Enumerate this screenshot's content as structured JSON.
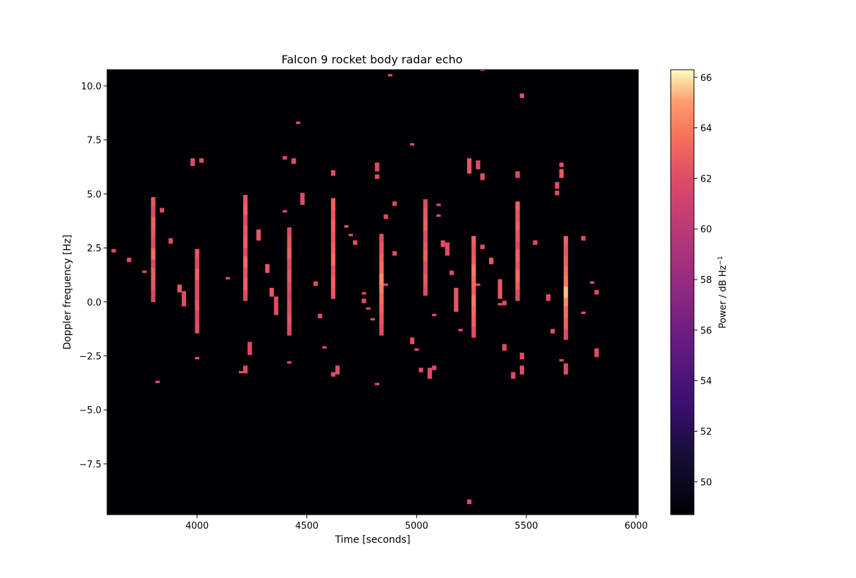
{
  "chart_data": {
    "type": "heatmap",
    "title": "Falcon 9 rocket body radar echo",
    "xlabel": "Time [seconds]",
    "ylabel": "Doppler frequency [Hz]",
    "xlim": [
      3590,
      6010
    ],
    "ylim": [
      -9.85,
      10.75
    ],
    "x_ticks": [
      4000,
      4500,
      5000,
      5500,
      6000
    ],
    "y_ticks": [
      -7.5,
      -5.0,
      -2.5,
      0.0,
      2.5,
      5.0,
      7.5,
      10.0
    ],
    "x_tick_labels": [
      "4000",
      "4500",
      "5000",
      "5500",
      "6000"
    ],
    "y_tick_labels": [
      "−7.5",
      "−5.0",
      "−2.5",
      "0.0",
      "2.5",
      "5.0",
      "7.5",
      "10.0"
    ],
    "background_color": "#000004",
    "colormap": "magma",
    "colorbar": {
      "label_main": "Power / dB Hz",
      "label_sup": "−1",
      "range": [
        48.7,
        66.3
      ],
      "ticks": [
        50,
        52,
        54,
        56,
        58,
        60,
        62,
        64,
        66
      ],
      "tick_labels": [
        "50",
        "52",
        "54",
        "56",
        "58",
        "60",
        "62",
        "64",
        "66"
      ]
    },
    "cell_width_s": 20,
    "cell_height_hz": 0.13,
    "series": [
      {
        "x": 3620,
        "y0": 2.3,
        "y1": 2.45,
        "values": [
          62
        ]
      },
      {
        "x": 3690,
        "y0": 1.85,
        "y1": 2.05,
        "values": [
          62
        ]
      },
      {
        "x": 3760,
        "y0": 1.35,
        "y1": 1.45,
        "values": [
          62
        ]
      },
      {
        "x": 3800,
        "y0": 0.0,
        "y1": 4.85,
        "values": [
          61.5,
          62.5,
          63,
          62,
          63.5,
          62,
          62.5,
          63,
          62,
          62.5
        ]
      },
      {
        "x": 3820,
        "y0": -3.75,
        "y1": -3.65,
        "values": [
          62
        ]
      },
      {
        "x": 3840,
        "y0": 4.15,
        "y1": 4.35,
        "values": [
          62
        ]
      },
      {
        "x": 3880,
        "y0": 2.7,
        "y1": 2.95,
        "values": [
          62
        ]
      },
      {
        "x": 3920,
        "y0": 0.45,
        "y1": 0.8,
        "values": [
          62.5
        ]
      },
      {
        "x": 3940,
        "y0": -0.2,
        "y1": 0.5,
        "values": [
          62
        ]
      },
      {
        "x": 3980,
        "y0": 6.3,
        "y1": 6.65,
        "values": [
          62
        ]
      },
      {
        "x": 4000,
        "y0": -1.45,
        "y1": 2.45,
        "values": [
          62,
          61.5,
          62.5,
          62,
          62,
          63,
          62,
          62.5
        ]
      },
      {
        "x": 4000,
        "y0": -2.65,
        "y1": -2.55,
        "values": [
          62
        ]
      },
      {
        "x": 4020,
        "y0": 6.45,
        "y1": 6.65,
        "values": [
          62
        ]
      },
      {
        "x": 4140,
        "y0": 1.05,
        "y1": 1.15,
        "values": [
          62
        ]
      },
      {
        "x": 4200,
        "y0": -3.3,
        "y1": -3.2,
        "values": [
          62
        ]
      },
      {
        "x": 4220,
        "y0": 0.05,
        "y1": 4.95,
        "values": [
          62,
          63,
          62.5,
          63.5,
          62,
          63,
          62.5,
          62,
          63,
          62.5
        ]
      },
      {
        "x": 4220,
        "y0": -3.3,
        "y1": -2.95,
        "values": [
          62
        ]
      },
      {
        "x": 4240,
        "y0": -2.45,
        "y1": -1.85,
        "values": [
          62
        ]
      },
      {
        "x": 4280,
        "y0": 2.85,
        "y1": 3.35,
        "values": [
          62.5
        ]
      },
      {
        "x": 4320,
        "y0": 1.35,
        "y1": 1.75,
        "values": [
          62.5
        ]
      },
      {
        "x": 4340,
        "y0": 0.25,
        "y1": 0.65,
        "values": [
          62.5
        ]
      },
      {
        "x": 4360,
        "y0": -0.6,
        "y1": 0.25,
        "values": [
          62
        ]
      },
      {
        "x": 4400,
        "y0": 4.15,
        "y1": 4.25,
        "values": [
          62
        ]
      },
      {
        "x": 4400,
        "y0": 6.6,
        "y1": 6.75,
        "values": [
          62
        ]
      },
      {
        "x": 4420,
        "y0": -1.55,
        "y1": 3.45,
        "values": [
          62,
          62.5,
          62,
          61.5,
          62,
          62.5,
          62,
          63,
          62.5,
          62
        ]
      },
      {
        "x": 4420,
        "y0": -2.85,
        "y1": -2.75,
        "values": [
          62
        ]
      },
      {
        "x": 4440,
        "y0": 6.4,
        "y1": 6.65,
        "values": [
          62
        ]
      },
      {
        "x": 4460,
        "y0": 8.25,
        "y1": 8.35,
        "values": [
          62
        ]
      },
      {
        "x": 4480,
        "y0": 4.5,
        "y1": 5.05,
        "values": [
          62
        ]
      },
      {
        "x": 4540,
        "y0": 0.75,
        "y1": 0.95,
        "values": [
          62
        ]
      },
      {
        "x": 4560,
        "y0": -0.75,
        "y1": -0.55,
        "values": [
          62
        ]
      },
      {
        "x": 4580,
        "y0": -2.15,
        "y1": -2.05,
        "values": [
          62
        ]
      },
      {
        "x": 4620,
        "y0": 0.15,
        "y1": 4.8,
        "values": [
          62.5,
          63,
          62.5,
          63.5,
          63,
          62.5,
          63,
          62.5,
          63
        ]
      },
      {
        "x": 4620,
        "y0": 5.85,
        "y1": 6.1,
        "values": [
          62
        ]
      },
      {
        "x": 4620,
        "y0": -3.45,
        "y1": -3.25,
        "values": [
          62
        ]
      },
      {
        "x": 4640,
        "y0": -3.35,
        "y1": -2.95,
        "values": [
          62
        ]
      },
      {
        "x": 4680,
        "y0": 3.45,
        "y1": 3.55,
        "values": [
          62
        ]
      },
      {
        "x": 4700,
        "y0": 3.05,
        "y1": 3.15,
        "values": [
          62
        ]
      },
      {
        "x": 4720,
        "y0": 2.65,
        "y1": 2.85,
        "values": [
          62
        ]
      },
      {
        "x": 4760,
        "y0": 0.35,
        "y1": 0.45,
        "values": [
          62
        ]
      },
      {
        "x": 4760,
        "y0": -0.05,
        "y1": 0.15,
        "values": [
          62
        ]
      },
      {
        "x": 4780,
        "y0": -0.35,
        "y1": -0.25,
        "values": [
          62
        ]
      },
      {
        "x": 4800,
        "y0": -0.85,
        "y1": -0.75,
        "values": [
          62
        ]
      },
      {
        "x": 4820,
        "y0": 5.7,
        "y1": 5.9,
        "values": [
          62
        ]
      },
      {
        "x": 4820,
        "y0": 6.05,
        "y1": 6.45,
        "values": [
          62
        ]
      },
      {
        "x": 4820,
        "y0": -3.85,
        "y1": -3.75,
        "values": [
          62
        ]
      },
      {
        "x": 4840,
        "y0": -1.55,
        "y1": 3.15,
        "values": [
          62,
          62.5,
          63,
          63.5,
          64,
          64.5,
          63.5,
          63,
          62.5,
          62
        ]
      },
      {
        "x": 4860,
        "y0": 0.75,
        "y1": 0.85,
        "values": [
          62
        ]
      },
      {
        "x": 4860,
        "y0": 3.85,
        "y1": 4.05,
        "values": [
          62
        ]
      },
      {
        "x": 4880,
        "y0": 10.45,
        "y1": 10.55,
        "values": [
          62
        ]
      },
      {
        "x": 4900,
        "y0": 4.45,
        "y1": 4.65,
        "values": [
          62
        ]
      },
      {
        "x": 4900,
        "y0": 2.15,
        "y1": 2.35,
        "values": [
          62
        ]
      },
      {
        "x": 4980,
        "y0": 7.25,
        "y1": 7.35,
        "values": [
          62
        ]
      },
      {
        "x": 4980,
        "y0": -1.95,
        "y1": -1.65,
        "values": [
          62
        ]
      },
      {
        "x": 5000,
        "y0": -2.25,
        "y1": -2.15,
        "values": [
          62
        ]
      },
      {
        "x": 5020,
        "y0": -3.25,
        "y1": -3.05,
        "values": [
          62
        ]
      },
      {
        "x": 5040,
        "y0": 0.3,
        "y1": 4.75,
        "values": [
          62,
          62.5,
          62,
          63,
          62.5,
          62,
          63,
          62.5,
          62
        ]
      },
      {
        "x": 5060,
        "y0": -3.55,
        "y1": -3.05,
        "values": [
          62
        ]
      },
      {
        "x": 5080,
        "y0": -3.15,
        "y1": -2.95,
        "values": [
          62
        ]
      },
      {
        "x": 5080,
        "y0": -0.65,
        "y1": -0.55,
        "values": [
          62
        ]
      },
      {
        "x": 5100,
        "y0": 4.45,
        "y1": 4.55,
        "values": [
          62
        ]
      },
      {
        "x": 5100,
        "y0": 3.95,
        "y1": 4.05,
        "values": [
          62
        ]
      },
      {
        "x": 5120,
        "y0": 2.55,
        "y1": 2.85,
        "values": [
          62
        ]
      },
      {
        "x": 5140,
        "y0": 2.15,
        "y1": 2.75,
        "values": [
          62
        ]
      },
      {
        "x": 5160,
        "y0": 1.25,
        "y1": 1.45,
        "values": [
          62
        ]
      },
      {
        "x": 5180,
        "y0": -0.45,
        "y1": 0.65,
        "values": [
          62.5
        ]
      },
      {
        "x": 5200,
        "y0": -1.35,
        "y1": -1.25,
        "values": [
          62
        ]
      },
      {
        "x": 5240,
        "y0": 5.95,
        "y1": 6.65,
        "values": [
          62.5
        ]
      },
      {
        "x": 5240,
        "y0": -9.35,
        "y1": -9.15,
        "values": [
          62
        ]
      },
      {
        "x": 5260,
        "y0": -1.65,
        "y1": 3.05,
        "values": [
          62,
          63,
          63.5,
          64,
          63,
          63.5,
          64,
          63,
          62.5,
          63
        ]
      },
      {
        "x": 5280,
        "y0": 6.15,
        "y1": 6.55,
        "values": [
          62
        ]
      },
      {
        "x": 5280,
        "y0": 0.75,
        "y1": 0.85,
        "values": [
          62
        ]
      },
      {
        "x": 5300,
        "y0": 2.45,
        "y1": 2.65,
        "values": [
          62
        ]
      },
      {
        "x": 5300,
        "y0": 5.65,
        "y1": 5.95,
        "values": [
          62
        ]
      },
      {
        "x": 5300,
        "y0": 10.7,
        "y1": 10.75,
        "values": [
          62
        ]
      },
      {
        "x": 5340,
        "y0": 1.75,
        "y1": 2.05,
        "values": [
          62.5
        ]
      },
      {
        "x": 5380,
        "y0": 0.15,
        "y1": 1.05,
        "values": [
          62.5
        ]
      },
      {
        "x": 5380,
        "y0": -0.15,
        "y1": -0.05,
        "values": [
          62
        ]
      },
      {
        "x": 5400,
        "y0": -0.15,
        "y1": 0.05,
        "values": [
          62
        ]
      },
      {
        "x": 5400,
        "y0": -2.25,
        "y1": -1.95,
        "values": [
          62
        ]
      },
      {
        "x": 5440,
        "y0": -3.55,
        "y1": -3.25,
        "values": [
          62
        ]
      },
      {
        "x": 5460,
        "y0": 0.05,
        "y1": 4.65,
        "values": [
          62,
          63,
          63.5,
          62.5,
          63,
          62,
          62.5,
          63,
          62.5,
          63
        ]
      },
      {
        "x": 5460,
        "y0": 5.75,
        "y1": 6.05,
        "values": [
          62
        ]
      },
      {
        "x": 5480,
        "y0": -3.35,
        "y1": -2.95,
        "values": [
          62
        ]
      },
      {
        "x": 5480,
        "y0": -2.65,
        "y1": -2.35,
        "values": [
          62
        ]
      },
      {
        "x": 5480,
        "y0": 9.45,
        "y1": 9.65,
        "values": [
          62
        ]
      },
      {
        "x": 5540,
        "y0": 2.65,
        "y1": 2.85,
        "values": [
          62
        ]
      },
      {
        "x": 5600,
        "y0": 0.05,
        "y1": 0.35,
        "values": [
          62
        ]
      },
      {
        "x": 5620,
        "y0": -1.45,
        "y1": -1.25,
        "values": [
          62
        ]
      },
      {
        "x": 5640,
        "y0": 4.95,
        "y1": 5.15,
        "values": [
          62
        ]
      },
      {
        "x": 5640,
        "y0": 5.25,
        "y1": 5.55,
        "values": [
          62
        ]
      },
      {
        "x": 5660,
        "y0": 5.75,
        "y1": 6.15,
        "values": [
          62.5
        ]
      },
      {
        "x": 5660,
        "y0": 6.25,
        "y1": 6.45,
        "values": [
          62
        ]
      },
      {
        "x": 5660,
        "y0": -2.75,
        "y1": -2.65,
        "values": [
          62
        ]
      },
      {
        "x": 5680,
        "y0": -1.75,
        "y1": 3.05,
        "values": [
          62,
          63,
          63.5,
          64.5,
          65.5,
          64,
          63.5,
          63,
          62.5,
          63
        ]
      },
      {
        "x": 5680,
        "y0": -3.35,
        "y1": -2.85,
        "values": [
          62
        ]
      },
      {
        "x": 5760,
        "y0": 2.85,
        "y1": 3.05,
        "values": [
          62
        ]
      },
      {
        "x": 5760,
        "y0": -0.55,
        "y1": -0.45,
        "values": [
          62
        ]
      },
      {
        "x": 5800,
        "y0": 0.85,
        "y1": 0.95,
        "values": [
          62
        ]
      },
      {
        "x": 5820,
        "y0": 0.35,
        "y1": 0.55,
        "values": [
          62
        ]
      },
      {
        "x": 5820,
        "y0": -2.55,
        "y1": -2.15,
        "values": [
          62
        ]
      }
    ]
  }
}
